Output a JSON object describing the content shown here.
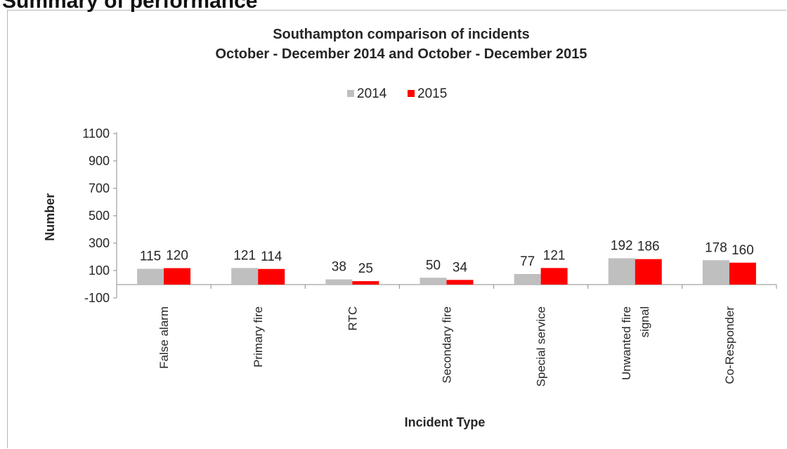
{
  "page": {
    "heading": "Summary of performance"
  },
  "chart_data": {
    "type": "bar",
    "title_lines": [
      "Southampton comparison of incidents",
      "October - December 2014 and October - December 2015"
    ],
    "xlabel": "Incident Type",
    "ylabel": "Number",
    "categories": [
      [
        "False alarm"
      ],
      [
        "Primary fire"
      ],
      [
        "RTC"
      ],
      [
        "Secondary fire"
      ],
      [
        "Special service"
      ],
      [
        "Unwanted fire",
        "signal"
      ],
      [
        "Co-Responder"
      ]
    ],
    "series": [
      {
        "name": "2014",
        "color": "#bfbfbf",
        "values": [
          115,
          121,
          38,
          50,
          77,
          192,
          178
        ]
      },
      {
        "name": "2015",
        "color": "#ff0000",
        "values": [
          120,
          114,
          25,
          34,
          121,
          186,
          160
        ]
      }
    ],
    "yticks": [
      1100,
      900,
      700,
      500,
      300,
      100,
      -100
    ],
    "ylim": [
      -100,
      1100
    ],
    "legend_position": "top-center",
    "grid": false
  }
}
